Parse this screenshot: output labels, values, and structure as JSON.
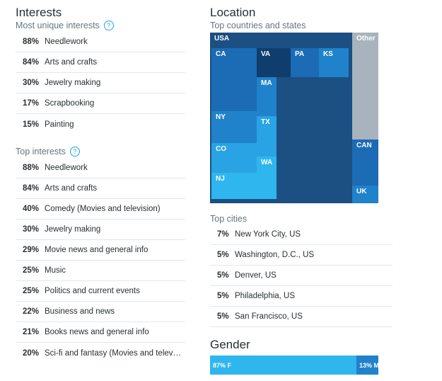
{
  "interests": {
    "title": "Interests",
    "unique_label": "Most unique interests",
    "unique_help_icon": "help-icon",
    "unique": [
      {
        "pct": "88%",
        "label": "Needlework"
      },
      {
        "pct": "84%",
        "label": "Arts and crafts"
      },
      {
        "pct": "30%",
        "label": "Jewelry making"
      },
      {
        "pct": "17%",
        "label": "Scrapbooking"
      },
      {
        "pct": "15%",
        "label": "Painting"
      }
    ],
    "top_label": "Top interests",
    "top": [
      {
        "pct": "88%",
        "label": "Needlework"
      },
      {
        "pct": "84%",
        "label": "Arts and crafts"
      },
      {
        "pct": "40%",
        "label": "Comedy (Movies and television)"
      },
      {
        "pct": "30%",
        "label": "Jewelry making"
      },
      {
        "pct": "29%",
        "label": "Movie news and general info"
      },
      {
        "pct": "25%",
        "label": "Music"
      },
      {
        "pct": "25%",
        "label": "Politics and current events"
      },
      {
        "pct": "22%",
        "label": "Business and news"
      },
      {
        "pct": "21%",
        "label": "Books news and general info"
      },
      {
        "pct": "20%",
        "label": "Sci-fi and fantasy (Movies and telev…"
      }
    ]
  },
  "location": {
    "title": "Location",
    "subtitle": "Top countries and states",
    "treemap": {
      "usa": "USA",
      "ca": "CA",
      "va": "VA",
      "pa": "PA",
      "ks": "KS",
      "ma": "MA",
      "ny": "NY",
      "tx": "TX",
      "co": "CO",
      "wa": "WA",
      "nj": "NJ",
      "other": "Other",
      "can": "CAN",
      "uk": "UK"
    },
    "colors": {
      "usa": "#1c4f82",
      "dark": "#0f3e6e",
      "mid": "#1b6bb5",
      "bright": "#2082cb",
      "light": "#29a3e3",
      "lighter": "#2fb6ee",
      "other": "#a8b3bd"
    },
    "cities_label": "Top cities",
    "cities": [
      {
        "pct": "7%",
        "label": "New York City, US"
      },
      {
        "pct": "5%",
        "label": "Washington, D.C., US"
      },
      {
        "pct": "5%",
        "label": "Denver, US"
      },
      {
        "pct": "5%",
        "label": "Philadelphia, US"
      },
      {
        "pct": "5%",
        "label": "San Francisco, US"
      }
    ]
  },
  "gender": {
    "title": "Gender",
    "female": "87% F",
    "male": "13% M",
    "female_share": 0.87,
    "colors": {
      "female": "#2fb6ee",
      "male": "#2082cb"
    }
  }
}
